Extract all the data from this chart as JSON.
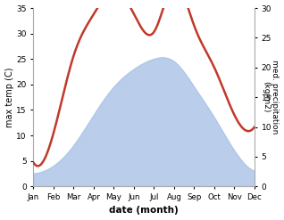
{
  "months": [
    "Jan",
    "Feb",
    "Mar",
    "Apr",
    "May",
    "Jun",
    "Jul",
    "Aug",
    "Sep",
    "Oct",
    "Nov",
    "Dec"
  ],
  "temp": [
    2.5,
    4.0,
    8.0,
    14.0,
    19.5,
    23.0,
    25.0,
    24.5,
    19.5,
    13.5,
    7.0,
    3.0
  ],
  "precip": [
    4.0,
    9.0,
    22.0,
    29.0,
    33.0,
    29.0,
    26.0,
    34.0,
    27.0,
    20.0,
    12.0,
    10.0
  ],
  "temp_color": "#aec6e8",
  "temp_fill_alpha": 0.85,
  "precip_color": "#c0392b",
  "left_ylim": [
    0,
    35
  ],
  "right_ylim": [
    0,
    30
  ],
  "left_yticks": [
    0,
    5,
    10,
    15,
    20,
    25,
    30,
    35
  ],
  "right_yticks": [
    0,
    5,
    10,
    15,
    20,
    25,
    30
  ],
  "xlabel": "date (month)",
  "ylabel_left": "max temp (C)",
  "ylabel_right": "med. precipitation\n(kg/m2)",
  "bg_color": "#ffffff",
  "precip_linewidth": 1.8,
  "spine_color": "#aaaaaa"
}
